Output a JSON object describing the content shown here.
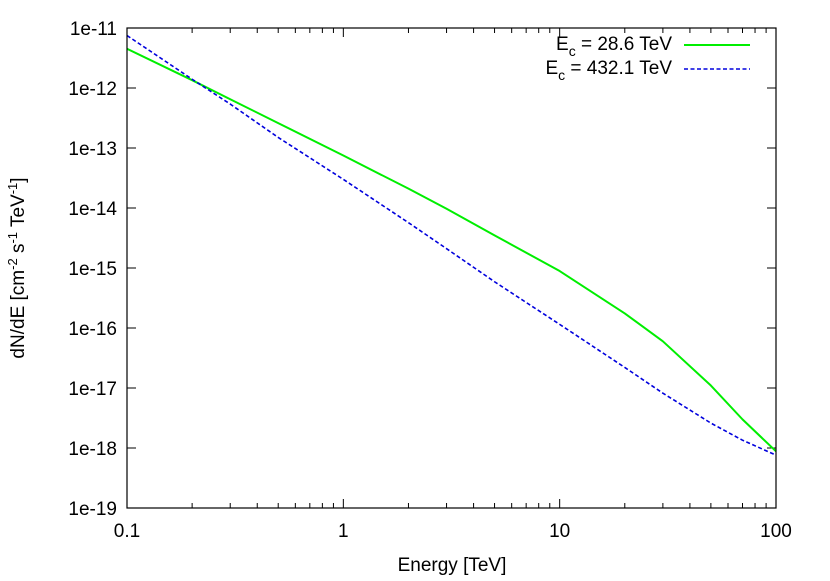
{
  "chart_data": {
    "type": "line",
    "title": "",
    "xlabel": "Energy [TeV]",
    "ylabel": "dN/dE [cm-2 s-1 TeV-1]",
    "ylabel_parts": {
      "pre": "dN/dE [cm",
      "e1": "-2",
      "mid1": " s",
      "e2": "-1",
      "mid2": " TeV",
      "e3": "-1",
      "post": "]"
    },
    "xscale": "log",
    "yscale": "log",
    "xlim": [
      0.1,
      100
    ],
    "ylim": [
      1e-19,
      1e-11
    ],
    "xticks": [
      0.1,
      1,
      10,
      100
    ],
    "xtick_labels": [
      "0.1",
      "1",
      "10",
      "100"
    ],
    "yticks": [
      1e-19,
      1e-18,
      1e-17,
      1e-16,
      1e-15,
      1e-14,
      1e-13,
      1e-12,
      1e-11
    ],
    "ytick_labels": [
      "1e-19",
      "1e-18",
      "1e-17",
      "1e-16",
      "1e-15",
      "1e-14",
      "1e-13",
      "1e-12",
      "1e-11"
    ],
    "grid": false,
    "legend_position": "top-right",
    "series": [
      {
        "name": "E_c = 28.6 TeV",
        "legend": {
          "base": "E",
          "sub": "c",
          "rest": " = 28.6 TeV"
        },
        "color": "#00ee00",
        "dash": "solid",
        "x": [
          0.1,
          0.2,
          0.3,
          0.5,
          1,
          2,
          3,
          5,
          10,
          20,
          30,
          50,
          70,
          100
        ],
        "y": [
          4.5e-12,
          1.35e-12,
          6.5e-13,
          2.6e-13,
          7.5e-14,
          2.1e-14,
          9.7e-15,
          3.5e-15,
          8.9e-16,
          1.75e-16,
          6e-17,
          1.1e-17,
          3e-18,
          8.8e-19
        ]
      },
      {
        "name": "E_c = 432.1 TeV",
        "legend": {
          "base": "E",
          "sub": "c",
          "rest": " = 432.1 TeV"
        },
        "color": "#0000dd",
        "dash": "dashed",
        "x": [
          0.1,
          0.2,
          0.3,
          0.5,
          1,
          2,
          3,
          5,
          10,
          20,
          30,
          50,
          70,
          100
        ],
        "y": [
          7.5e-12,
          1.4e-12,
          5.4e-13,
          1.5e-13,
          3e-14,
          5.7e-15,
          2.1e-15,
          5.9e-16,
          1.15e-16,
          2.2e-17,
          8.2e-18,
          2.6e-18,
          1.35e-18,
          7.6e-19
        ]
      }
    ]
  }
}
